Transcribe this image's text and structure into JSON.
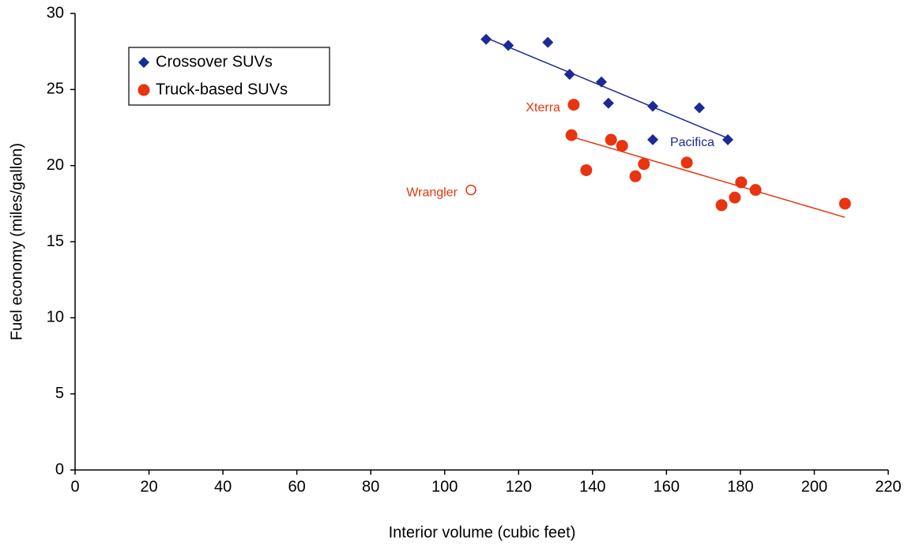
{
  "chart_data": {
    "type": "scatter",
    "x_label": "Interior volume (cubic feet)",
    "y_label": "Fuel economy (miles/gallon)",
    "xlim": [
      0,
      220
    ],
    "xticks": [
      0,
      20,
      40,
      60,
      80,
      100,
      120,
      140,
      160,
      180,
      200,
      220
    ],
    "ylim": [
      0,
      30
    ],
    "yticks": [
      0,
      5,
      10,
      15,
      20,
      25,
      30
    ],
    "grid": false,
    "legend": "upper left",
    "series": [
      {
        "name": "Crossover SUVs",
        "color": "#1c2a94",
        "marker": "diamond",
        "x": [
          111.2,
          117.2,
          127.9,
          133.8,
          142.4,
          144.3,
          156.3,
          168.9,
          156.3,
          176.6
        ],
        "values": [
          28.3,
          27.9,
          28.1,
          26.0,
          25.5,
          24.1,
          23.9,
          23.8,
          21.7,
          21.7
        ],
        "point_labels": [
          null,
          null,
          null,
          null,
          null,
          null,
          null,
          null,
          null,
          "Pacifica"
        ],
        "trend": {
          "x": [
            111.2,
            176.6
          ],
          "values": [
            28.4,
            21.8
          ]
        }
      },
      {
        "name": "Truck-based SUVs",
        "color": "#e8340f",
        "marker": "circle",
        "x": [
          134.9,
          134.3,
          138.3,
          145.0,
          148.0,
          151.6,
          153.9,
          165.5,
          174.9,
          178.5,
          180.2,
          184.1,
          208.3
        ],
        "values": [
          24.0,
          22.0,
          19.7,
          21.7,
          21.3,
          19.3,
          20.1,
          20.2,
          17.4,
          17.9,
          18.9,
          18.4,
          17.5
        ],
        "point_labels": [
          "Xterra",
          null,
          null,
          null,
          null,
          null,
          null,
          null,
          null,
          null,
          null,
          null,
          null
        ],
        "trend": {
          "x": [
            134.3,
            208.3
          ],
          "values": [
            21.9,
            16.6
          ]
        }
      }
    ],
    "outliers": {
      "color": "#e8340f",
      "marker": "open-circle",
      "x": [
        107.1
      ],
      "values": [
        18.4
      ],
      "point_labels": [
        "Wrangler"
      ]
    }
  }
}
